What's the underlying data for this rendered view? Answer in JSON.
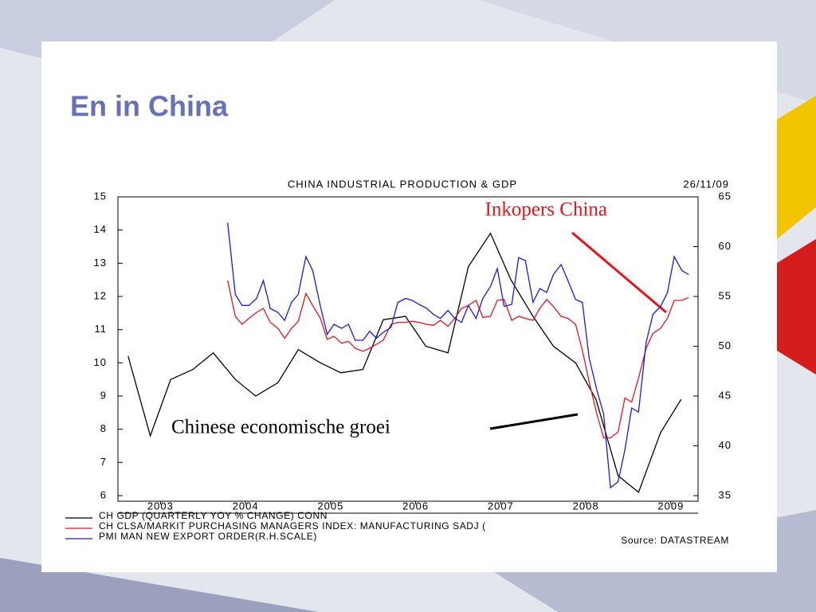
{
  "slide": {
    "title": "En in China"
  },
  "chart_data": {
    "type": "line",
    "title": "CHINA INDUSTRIAL PRODUCTION & GDP",
    "date": "26/11/09",
    "source": "Source: DATASTREAM",
    "annotations": [
      {
        "text": "Inkopers China",
        "color": "#e8141c"
      },
      {
        "text": "Chinese economische groei",
        "color": "#000000"
      }
    ],
    "xlim": [
      2003,
      2009.82
    ],
    "xticks": [
      {
        "value": 2003.5,
        "label": "2003"
      },
      {
        "value": 2004.5,
        "label": "2004"
      },
      {
        "value": 2005.5,
        "label": "2005"
      },
      {
        "value": 2006.5,
        "label": "2006"
      },
      {
        "value": 2007.5,
        "label": "2007"
      },
      {
        "value": 2008.5,
        "label": "2008"
      },
      {
        "value": 2009.5,
        "label": "2009"
      }
    ],
    "ylim": [
      6,
      15
    ],
    "yticks": [
      6,
      7,
      8,
      9,
      10,
      11,
      12,
      13,
      14,
      15
    ],
    "y2lim": [
      35,
      65
    ],
    "y2ticks": [
      35,
      40,
      45,
      50,
      55,
      60,
      65
    ],
    "series": [
      {
        "name": "CH GDP (QUARTERLY YOY % CHANGE) CONN",
        "color": "#000000",
        "x": [
          2003.12,
          2003.38,
          2003.62,
          2003.88,
          2004.12,
          2004.38,
          2004.62,
          2004.88,
          2005.12,
          2005.38,
          2005.62,
          2005.88,
          2006.12,
          2006.38,
          2006.62,
          2006.88,
          2007.12,
          2007.38,
          2007.62,
          2007.88,
          2008.12,
          2008.38,
          2008.62,
          2008.88,
          2009.12,
          2009.38,
          2009.62
        ],
        "values": [
          10.2,
          7.8,
          9.5,
          9.8,
          10.3,
          9.5,
          9.0,
          9.4,
          10.4,
          10.0,
          9.7,
          9.8,
          11.3,
          11.4,
          10.5,
          10.3,
          12.9,
          13.9,
          12.5,
          11.4,
          10.5,
          10.0,
          8.9,
          6.6,
          6.1,
          7.9,
          8.9
        ]
      },
      {
        "name": "CH CLSA/MARKIT PURCHASING MANAGERS INDEX: MANUFACTURING SADJ (",
        "color": "#e8141c",
        "axis": "y2",
        "x": [
          2004.29,
          2004.38,
          2004.46,
          2004.54,
          2004.63,
          2004.71,
          2004.79,
          2004.88,
          2004.96,
          2005.04,
          2005.12,
          2005.21,
          2005.29,
          2005.38,
          2005.46,
          2005.54,
          2005.63,
          2005.71,
          2005.79,
          2005.88,
          2005.96,
          2006.04,
          2006.12,
          2006.21,
          2006.29,
          2006.38,
          2006.46,
          2006.54,
          2006.63,
          2006.71,
          2006.79,
          2006.88,
          2006.96,
          2007.04,
          2007.12,
          2007.21,
          2007.29,
          2007.38,
          2007.46,
          2007.54,
          2007.63,
          2007.71,
          2007.79,
          2007.88,
          2007.96,
          2008.04,
          2008.12,
          2008.21,
          2008.29,
          2008.38,
          2008.46,
          2008.54,
          2008.63,
          2008.71,
          2008.79,
          2008.88,
          2008.96,
          2009.04,
          2009.12,
          2009.21,
          2009.29,
          2009.38,
          2009.46,
          2009.54,
          2009.63,
          2009.71
        ],
        "values": [
          56.6,
          53.0,
          52.2,
          52.8,
          53.4,
          53.8,
          52.4,
          51.8,
          50.8,
          51.8,
          52.5,
          55.3,
          54.1,
          52.8,
          50.7,
          51.0,
          50.3,
          50.5,
          49.8,
          49.5,
          49.8,
          50.2,
          50.6,
          52.2,
          52.4,
          52.4,
          52.5,
          52.4,
          52.2,
          52.1,
          52.6,
          52.0,
          52.8,
          53.8,
          54.1,
          54.6,
          52.9,
          53.0,
          54.6,
          54.7,
          52.6,
          53.0,
          52.8,
          52.6,
          53.8,
          54.7,
          54.0,
          53.0,
          52.8,
          52.2,
          49.6,
          46.4,
          43.2,
          40.8,
          40.8,
          41.4,
          44.8,
          44.4,
          46.8,
          49.8,
          51.3,
          51.8,
          52.8,
          54.6,
          54.6,
          54.9
        ]
      },
      {
        "name": "PMI MAN NEW EXPORT ORDER(R.H.SCALE)",
        "color": "#1a1adc",
        "axis": "y2",
        "x": [
          2004.29,
          2004.38,
          2004.46,
          2004.54,
          2004.63,
          2004.71,
          2004.79,
          2004.88,
          2004.96,
          2005.04,
          2005.12,
          2005.21,
          2005.29,
          2005.38,
          2005.46,
          2005.54,
          2005.63,
          2005.71,
          2005.79,
          2005.88,
          2005.96,
          2006.04,
          2006.12,
          2006.21,
          2006.29,
          2006.38,
          2006.46,
          2006.54,
          2006.63,
          2006.71,
          2006.79,
          2006.88,
          2006.96,
          2007.04,
          2007.12,
          2007.21,
          2007.29,
          2007.38,
          2007.46,
          2007.54,
          2007.63,
          2007.71,
          2007.79,
          2007.88,
          2007.96,
          2008.04,
          2008.12,
          2008.21,
          2008.29,
          2008.38,
          2008.46,
          2008.54,
          2008.63,
          2008.71,
          2008.79,
          2008.88,
          2008.96,
          2009.04,
          2009.12,
          2009.21,
          2009.29,
          2009.38,
          2009.46,
          2009.54,
          2009.63,
          2009.71
        ],
        "values": [
          62.4,
          55.2,
          54.1,
          54.1,
          54.8,
          56.6,
          53.8,
          53.4,
          52.6,
          54.4,
          55.2,
          59.0,
          57.6,
          54.0,
          51.2,
          52.2,
          51.8,
          52.2,
          50.6,
          50.6,
          51.5,
          50.8,
          51.4,
          51.9,
          54.4,
          54.8,
          54.6,
          54.2,
          53.8,
          53.2,
          52.8,
          53.6,
          52.8,
          52.4,
          54.1,
          52.8,
          54.8,
          56.0,
          57.8,
          54.0,
          54.2,
          58.9,
          58.6,
          54.4,
          55.8,
          55.4,
          57.2,
          58.2,
          56.6,
          54.7,
          54.4,
          48.8,
          45.6,
          43.2,
          35.8,
          36.4,
          39.6,
          43.8,
          43.4,
          50.4,
          53.2,
          54.0,
          55.4,
          59.0,
          57.6,
          57.2
        ]
      }
    ]
  }
}
